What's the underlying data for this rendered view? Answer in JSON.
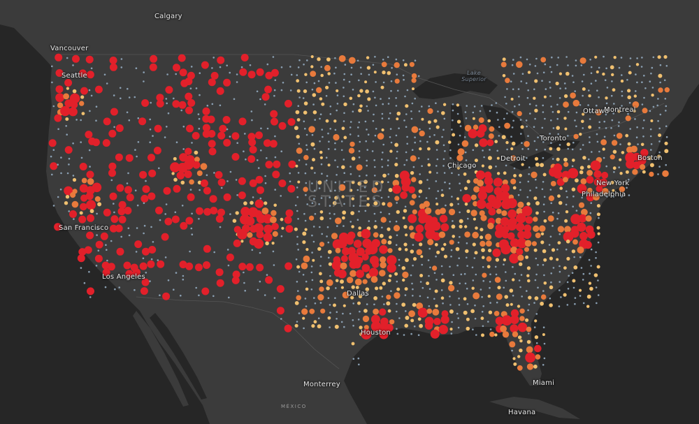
{
  "map": {
    "basemap": "dark gray canvas",
    "colors": {
      "land": "#3b3b3b",
      "water": "#262626",
      "border": "#555555",
      "dot_low": "#8a9fb2",
      "dot_mid": "#f0c070",
      "dot_high": "#e87a3c",
      "dot_max": "#e2202a"
    },
    "labels": {
      "calgary": "Calgary",
      "vancouver": "Vancouver",
      "seattle": "Seattle",
      "san_francisco": "San Francisco",
      "los_angeles": "Los Angeles",
      "united_states_1": "UNITED",
      "united_states_2": "STATES",
      "lake_superior": "Lake Superior",
      "chicago": "Chicago",
      "detroit": "Detroit",
      "toronto": "Toronto",
      "ottawa": "Ottawa",
      "montreal": "Montreal",
      "boston": "Boston",
      "new_york": "New York",
      "philadelphia": "Philadelphia",
      "dallas": "Dallas",
      "houston": "Houston",
      "monterrey": "Monterrey",
      "mexico": "MÉXICO",
      "miami": "Miami",
      "havana": "Havana"
    }
  }
}
